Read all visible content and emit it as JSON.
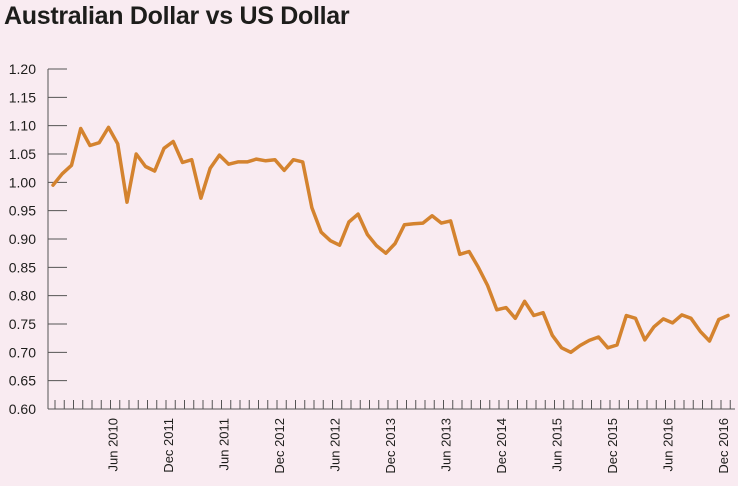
{
  "chart_data": {
    "type": "line",
    "title": "Australian Dollar vs US Dollar",
    "xlabel": "",
    "ylabel": "",
    "ylim": [
      0.6,
      1.2
    ],
    "yticks": [
      0.6,
      0.65,
      0.7,
      0.75,
      0.8,
      0.85,
      0.9,
      0.95,
      1.0,
      1.05,
      1.1,
      1.15,
      1.2
    ],
    "ytick_labels": [
      "0.60",
      "0.65",
      "0.70",
      "0.75",
      "0.80",
      "0.85",
      "0.90",
      "0.95",
      "1.00",
      "1.05",
      "1.10",
      "1.15",
      "1.20"
    ],
    "xtick_labels": [
      "Jun 2010",
      "Dec 2011",
      "Jun 2011",
      "Dec 2012",
      "Jun 2012",
      "Dec 2013",
      "Jun 2013",
      "Dec 2014",
      "Jun 2015",
      "Dec 2015",
      "Jun 2016",
      "Dec 2016"
    ],
    "grid": false,
    "colors": {
      "line": "#d4832f",
      "background": "#f9ebf1",
      "text": "#1d1d1b",
      "axis": "#555555"
    },
    "series": [
      {
        "values": [
          0.995,
          1.015,
          1.03,
          1.095,
          1.065,
          1.07,
          1.097,
          1.068,
          0.965,
          1.05,
          1.028,
          1.02,
          1.06,
          1.072,
          1.035,
          1.04,
          0.972,
          1.025,
          1.048,
          1.032,
          1.036,
          1.036,
          1.041,
          1.038,
          1.04,
          1.021,
          1.04,
          1.036,
          0.955,
          0.912,
          0.897,
          0.889,
          0.93,
          0.944,
          0.908,
          0.888,
          0.875,
          0.892,
          0.925,
          0.927,
          0.928,
          0.941,
          0.928,
          0.932,
          0.873,
          0.878,
          0.85,
          0.818,
          0.775,
          0.779,
          0.76,
          0.79,
          0.765,
          0.77,
          0.73,
          0.708,
          0.7,
          0.712,
          0.721,
          0.727,
          0.708,
          0.713,
          0.765,
          0.76,
          0.722,
          0.745,
          0.759,
          0.752,
          0.766,
          0.76,
          0.737,
          0.72,
          0.758,
          0.765
        ]
      }
    ]
  }
}
